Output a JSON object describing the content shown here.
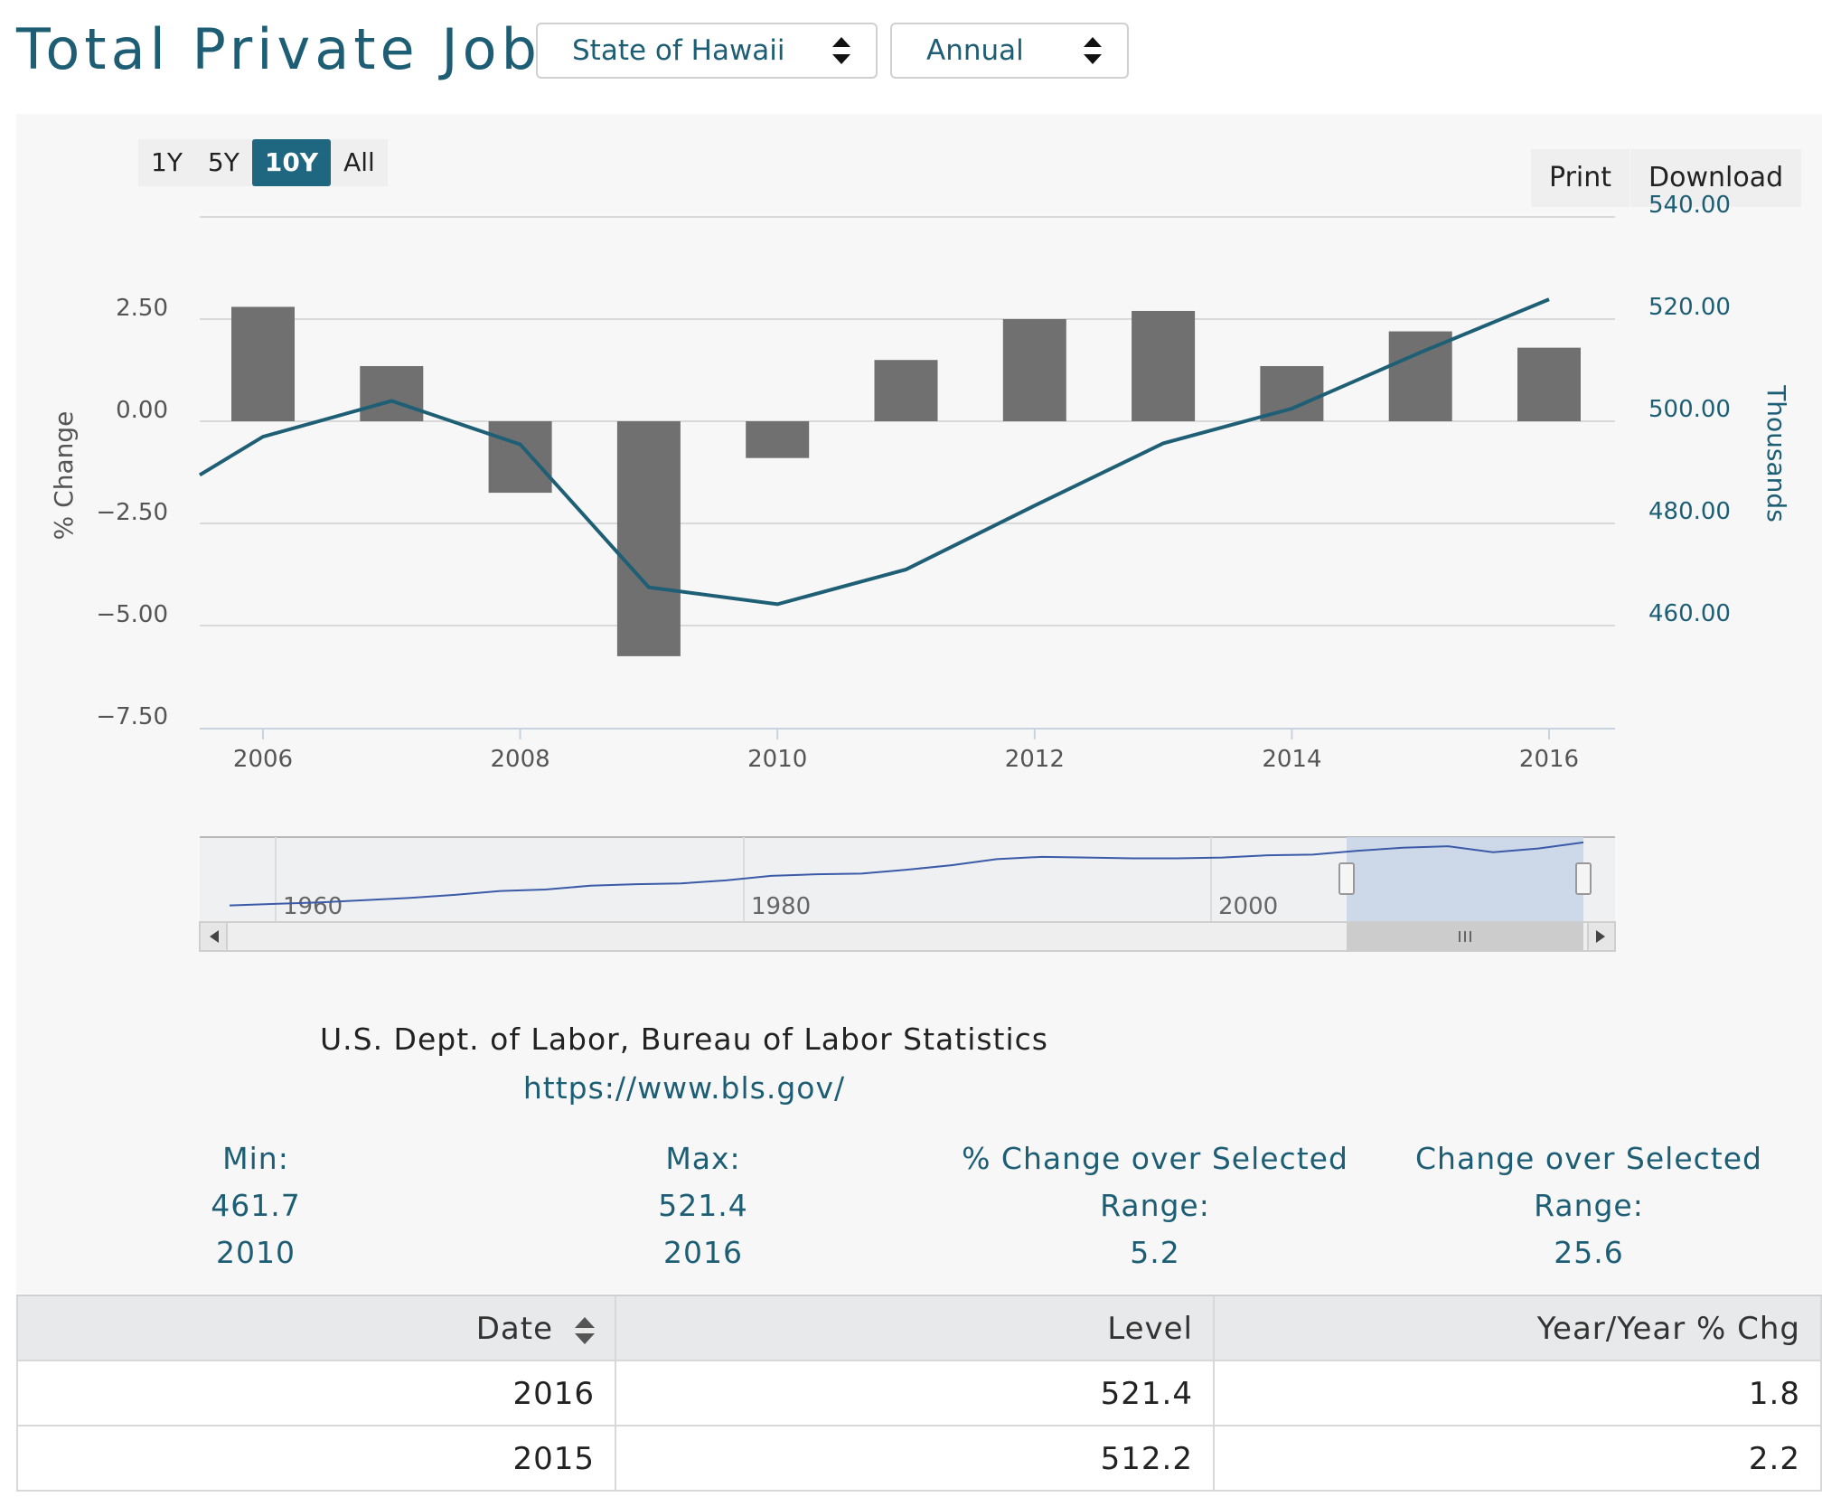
{
  "page": {
    "title": "Total Private Jobs"
  },
  "controls": {
    "state_select": "State of Hawaii",
    "period_select": "Annual",
    "ranges": [
      "1Y",
      "5Y",
      "10Y",
      "All"
    ],
    "active_range": "10Y",
    "print_label": "Print",
    "download_label": "Download"
  },
  "chart_data": {
    "type": "bar",
    "x": [
      2006,
      2007,
      2008,
      2009,
      2010,
      2011,
      2012,
      2013,
      2014,
      2015,
      2016
    ],
    "x_ticks": [
      "2006",
      "2008",
      "2010",
      "2012",
      "2014",
      "2016"
    ],
    "series": [
      {
        "type": "bar",
        "axis": "left",
        "values": [
          2.8,
          1.35,
          -1.75,
          -5.75,
          -0.9,
          1.5,
          2.5,
          2.7,
          1.35,
          2.2,
          1.8
        ]
      },
      {
        "type": "line",
        "axis": "right",
        "x": [
          2005.5,
          2006,
          2007,
          2008,
          2009,
          2010,
          2011,
          2012,
          2013,
          2014,
          2015,
          2016
        ],
        "values": [
          487.0,
          494.5,
          501.5,
          493.0,
          465.0,
          461.7,
          468.5,
          481.0,
          493.2,
          500.0,
          511.0,
          521.4
        ]
      }
    ],
    "left_axis": {
      "label": "% Change",
      "ticks": [
        "2.50",
        "0.00",
        "−2.50",
        "−5.00",
        "−7.50"
      ],
      "range": [
        -7.5,
        5.0
      ]
    },
    "right_axis": {
      "label": "Thousands",
      "ticks": [
        "540.00",
        "520.00",
        "500.00",
        "480.00",
        "460.00"
      ],
      "range": [
        460,
        540
      ]
    },
    "navigator": {
      "labels": [
        "1960",
        "1980",
        "2000"
      ],
      "values": [
        0.1,
        0.12,
        0.14,
        0.17,
        0.2,
        0.24,
        0.29,
        0.31,
        0.36,
        0.38,
        0.39,
        0.43,
        0.49,
        0.51,
        0.52,
        0.57,
        0.63,
        0.71,
        0.74,
        0.73,
        0.72,
        0.72,
        0.73,
        0.76,
        0.77,
        0.82,
        0.86,
        0.88,
        0.8,
        0.85,
        0.93
      ]
    }
  },
  "source": {
    "name": "U.S. Dept. of Labor, Bureau of Labor Statistics",
    "url": "https://www.bls.gov/"
  },
  "stats": {
    "min_label": "Min:",
    "min_value": "461.7",
    "min_year": "2010",
    "max_label": "Max:",
    "max_value": "521.4",
    "max_year": "2016",
    "pct_label_1": "% Change over Selected",
    "pct_label_2": "Range:",
    "pct_value": "5.2",
    "chg_label": "Change over Selected Range:",
    "chg_value": "25.6"
  },
  "table": {
    "headers": [
      "Date",
      "Level",
      "Year/Year % Chg"
    ],
    "rows": [
      [
        "2016",
        "521.4",
        "1.8"
      ],
      [
        "2015",
        "512.2",
        "2.2"
      ]
    ]
  },
  "colors": {
    "accent": "#1d5e75",
    "bar": "#707070",
    "line": "#1f5f75",
    "navigator_fill": "#c9d6e8"
  }
}
